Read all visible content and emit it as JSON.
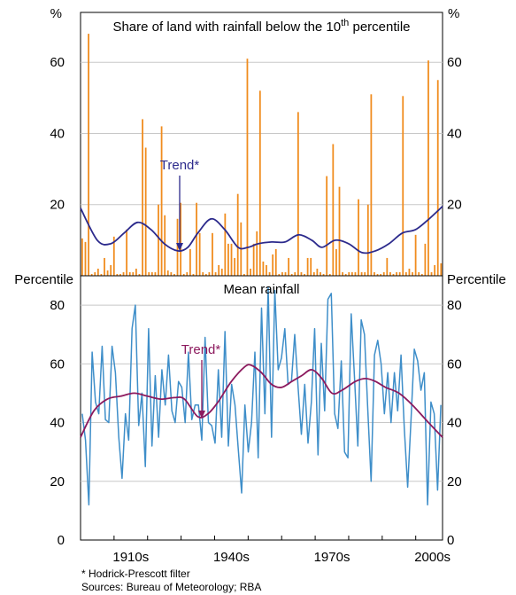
{
  "chart_data": [
    {
      "type": "bar",
      "title_main": "Share of land with rainfall below the 10",
      "title_sup": "th",
      "title_end": " percentile",
      "ylabel_left": "%",
      "ylabel_right": "%",
      "ylim": [
        0,
        74
      ],
      "yticks": [
        20,
        40,
        60
      ],
      "x_start": 1900,
      "x_end": 2008,
      "colors": {
        "bars": "#f08c1e",
        "trend": "#2c2a8c"
      },
      "trend_label": "Trend*",
      "values": [
        10.5,
        9.5,
        68,
        0.5,
        1,
        2,
        0.5,
        5,
        1.5,
        3,
        11,
        0.5,
        0.5,
        1,
        13,
        1,
        1,
        2,
        0.5,
        44,
        36,
        1,
        1,
        1,
        20,
        42,
        17,
        1.5,
        1,
        0.5,
        16,
        20.5,
        0.5,
        1,
        7.5,
        0.5,
        20.5,
        12,
        1,
        0.5,
        1,
        12,
        1,
        3,
        2,
        17.5,
        9,
        9,
        5,
        23,
        15,
        0.5,
        61,
        2,
        9,
        12.5,
        52,
        4,
        3,
        1,
        6,
        7.5,
        0.5,
        1,
        1,
        5,
        0.5,
        1,
        46,
        1,
        0.5,
        5,
        5,
        1,
        2,
        1,
        0.5,
        28,
        0.5,
        37,
        7.5,
        25,
        1,
        0.5,
        1,
        1,
        1,
        21.5,
        1,
        1,
        20,
        51,
        1,
        0.5,
        0.5,
        1,
        5,
        1,
        0.5,
        1,
        1,
        50.5,
        1,
        2,
        1,
        11.5,
        1,
        0.5,
        9,
        60.5,
        1,
        3,
        55,
        3.5
      ],
      "trend": [
        [
          1900,
          19
        ],
        [
          1905,
          10
        ],
        [
          1909,
          9
        ],
        [
          1913,
          12
        ],
        [
          1917,
          15
        ],
        [
          1921,
          13
        ],
        [
          1925,
          9
        ],
        [
          1929,
          7
        ],
        [
          1932,
          8
        ],
        [
          1935,
          12
        ],
        [
          1939,
          16
        ],
        [
          1943,
          13
        ],
        [
          1947,
          8
        ],
        [
          1950,
          8
        ],
        [
          1953,
          9
        ],
        [
          1957,
          9.5
        ],
        [
          1961,
          9.5
        ],
        [
          1965,
          11.5
        ],
        [
          1969,
          10
        ],
        [
          1972,
          8
        ],
        [
          1976,
          10
        ],
        [
          1980,
          9
        ],
        [
          1984,
          6.5
        ],
        [
          1988,
          7
        ],
        [
          1992,
          9
        ],
        [
          1996,
          12
        ],
        [
          2000,
          13
        ],
        [
          2004,
          16
        ],
        [
          2008,
          19.5
        ]
      ]
    },
    {
      "type": "line",
      "title": "Mean rainfall",
      "ylabel_left": "Percentile",
      "ylabel_right": "Percentile",
      "ylim": [
        0,
        90
      ],
      "yticks": [
        0,
        20,
        40,
        60,
        80
      ],
      "x_start": 1900,
      "x_end": 2008,
      "xticks": [
        "1910s",
        "1940s",
        "1970s",
        "2000s"
      ],
      "colors": {
        "line": "#3e8ec9",
        "trend": "#8c1a5e"
      },
      "trend_label": "Trend*",
      "values": [
        43,
        34,
        12,
        64,
        47,
        43,
        66,
        41,
        40,
        66,
        57,
        35,
        21,
        43,
        34,
        72,
        80,
        39,
        50,
        25,
        72,
        32,
        56,
        35,
        58,
        46,
        63,
        44,
        40,
        54,
        52,
        40,
        64,
        41,
        46,
        46,
        34,
        69,
        40,
        39,
        33,
        58,
        35,
        71,
        32,
        53,
        46,
        31,
        16,
        46,
        30,
        40,
        64,
        28,
        79,
        43,
        86,
        35,
        85,
        58,
        62,
        72,
        53,
        54,
        70,
        52,
        36,
        53,
        33,
        47,
        72,
        29,
        67,
        44,
        82,
        84,
        43,
        38,
        61,
        30,
        28,
        77,
        55,
        32,
        75,
        70,
        44,
        20,
        63,
        68,
        60,
        43,
        57,
        40,
        57,
        44,
        63,
        38,
        18,
        41,
        65,
        61,
        51,
        57,
        12,
        47,
        43,
        17,
        46
      ],
      "trend": [
        [
          1900,
          35
        ],
        [
          1904,
          44
        ],
        [
          1908,
          48
        ],
        [
          1912,
          49
        ],
        [
          1916,
          50
        ],
        [
          1920,
          49
        ],
        [
          1924,
          48
        ],
        [
          1928,
          48.5
        ],
        [
          1931,
          48
        ],
        [
          1935,
          42
        ],
        [
          1938,
          43
        ],
        [
          1941,
          47
        ],
        [
          1945,
          54
        ],
        [
          1949,
          59
        ],
        [
          1951,
          59.5
        ],
        [
          1954,
          57
        ],
        [
          1957,
          53
        ],
        [
          1960,
          52
        ],
        [
          1963,
          54
        ],
        [
          1966,
          56
        ],
        [
          1969,
          58
        ],
        [
          1972,
          55
        ],
        [
          1975,
          50
        ],
        [
          1978,
          51
        ],
        [
          1982,
          54
        ],
        [
          1985,
          55
        ],
        [
          1988,
          54
        ],
        [
          1991,
          52
        ],
        [
          1995,
          50
        ],
        [
          1999,
          46
        ],
        [
          2003,
          41
        ],
        [
          2008,
          35
        ]
      ]
    }
  ],
  "footnotes": {
    "note": "*  Hodrick-Prescott filter",
    "sources": "Sources: Bureau of Meteorology; RBA"
  }
}
